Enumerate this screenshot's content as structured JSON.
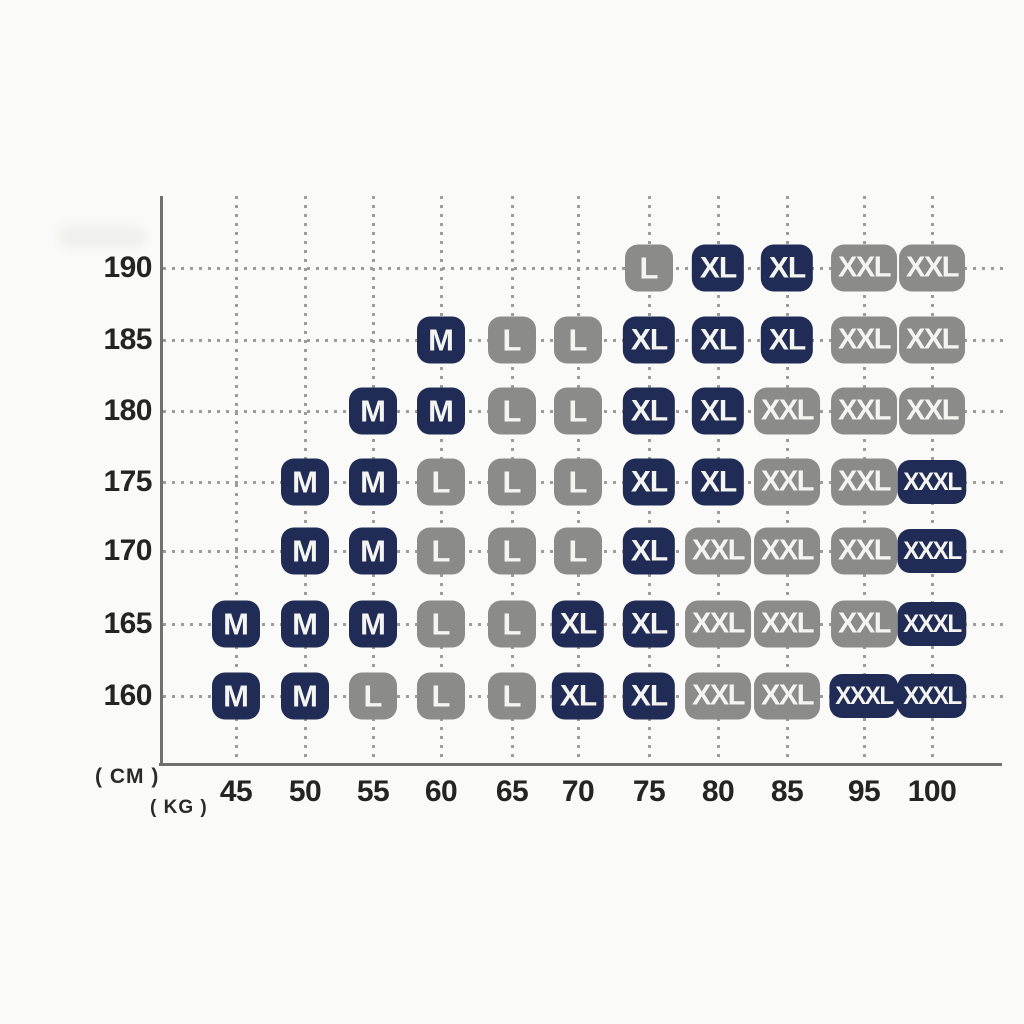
{
  "chart_data": {
    "type": "table",
    "xlabel": "( KG )",
    "ylabel": "( CM )",
    "x_ticks": [
      "45",
      "50",
      "55",
      "60",
      "65",
      "70",
      "75",
      "80",
      "85",
      "95",
      "100"
    ],
    "y_ticks": [
      "190",
      "185",
      "180",
      "175",
      "170",
      "165",
      "160"
    ],
    "sizes": [
      "M",
      "L",
      "XL",
      "XXL",
      "XXXL"
    ],
    "colors": {
      "navy": "#202c55",
      "gray": "#8b8b89",
      "badge_text": "#f4f4f1",
      "tick_text": "#242424",
      "axis": "#707070",
      "dot": "#9d9d9b",
      "background": "#fafaf8"
    },
    "rows": [
      {
        "cm": "190",
        "cells": [
          {
            "kg": "75",
            "size": "L",
            "variant": "gray"
          },
          {
            "kg": "80",
            "size": "XL",
            "variant": "navy"
          },
          {
            "kg": "85",
            "size": "XL",
            "variant": "navy"
          },
          {
            "kg": "95",
            "size": "XXL",
            "variant": "gray"
          },
          {
            "kg": "100",
            "size": "XXL",
            "variant": "gray"
          }
        ]
      },
      {
        "cm": "185",
        "cells": [
          {
            "kg": "60",
            "size": "M",
            "variant": "navy"
          },
          {
            "kg": "65",
            "size": "L",
            "variant": "gray"
          },
          {
            "kg": "70",
            "size": "L",
            "variant": "gray"
          },
          {
            "kg": "75",
            "size": "XL",
            "variant": "navy"
          },
          {
            "kg": "80",
            "size": "XL",
            "variant": "navy"
          },
          {
            "kg": "85",
            "size": "XL",
            "variant": "navy"
          },
          {
            "kg": "95",
            "size": "XXL",
            "variant": "gray"
          },
          {
            "kg": "100",
            "size": "XXL",
            "variant": "gray"
          }
        ]
      },
      {
        "cm": "180",
        "cells": [
          {
            "kg": "55",
            "size": "M",
            "variant": "navy"
          },
          {
            "kg": "60",
            "size": "M",
            "variant": "navy"
          },
          {
            "kg": "65",
            "size": "L",
            "variant": "gray"
          },
          {
            "kg": "70",
            "size": "L",
            "variant": "gray"
          },
          {
            "kg": "75",
            "size": "XL",
            "variant": "navy"
          },
          {
            "kg": "80",
            "size": "XL",
            "variant": "navy"
          },
          {
            "kg": "85",
            "size": "XXL",
            "variant": "gray"
          },
          {
            "kg": "95",
            "size": "XXL",
            "variant": "gray"
          },
          {
            "kg": "100",
            "size": "XXL",
            "variant": "gray"
          }
        ]
      },
      {
        "cm": "175",
        "cells": [
          {
            "kg": "50",
            "size": "M",
            "variant": "navy"
          },
          {
            "kg": "55",
            "size": "M",
            "variant": "navy"
          },
          {
            "kg": "60",
            "size": "L",
            "variant": "gray"
          },
          {
            "kg": "65",
            "size": "L",
            "variant": "gray"
          },
          {
            "kg": "70",
            "size": "L",
            "variant": "gray"
          },
          {
            "kg": "75",
            "size": "XL",
            "variant": "navy"
          },
          {
            "kg": "80",
            "size": "XL",
            "variant": "navy"
          },
          {
            "kg": "85",
            "size": "XXL",
            "variant": "gray"
          },
          {
            "kg": "95",
            "size": "XXL",
            "variant": "gray"
          },
          {
            "kg": "100",
            "size": "XXXL",
            "variant": "navy"
          }
        ]
      },
      {
        "cm": "170",
        "cells": [
          {
            "kg": "50",
            "size": "M",
            "variant": "navy"
          },
          {
            "kg": "55",
            "size": "M",
            "variant": "navy"
          },
          {
            "kg": "60",
            "size": "L",
            "variant": "gray"
          },
          {
            "kg": "65",
            "size": "L",
            "variant": "gray"
          },
          {
            "kg": "70",
            "size": "L",
            "variant": "gray"
          },
          {
            "kg": "75",
            "size": "XL",
            "variant": "navy"
          },
          {
            "kg": "80",
            "size": "XXL",
            "variant": "gray"
          },
          {
            "kg": "85",
            "size": "XXL",
            "variant": "gray"
          },
          {
            "kg": "95",
            "size": "XXL",
            "variant": "gray"
          },
          {
            "kg": "100",
            "size": "XXXL",
            "variant": "navy"
          }
        ]
      },
      {
        "cm": "165",
        "cells": [
          {
            "kg": "45",
            "size": "M",
            "variant": "navy"
          },
          {
            "kg": "50",
            "size": "M",
            "variant": "navy"
          },
          {
            "kg": "55",
            "size": "M",
            "variant": "navy"
          },
          {
            "kg": "60",
            "size": "L",
            "variant": "gray"
          },
          {
            "kg": "65",
            "size": "L",
            "variant": "gray"
          },
          {
            "kg": "70",
            "size": "XL",
            "variant": "navy"
          },
          {
            "kg": "75",
            "size": "XL",
            "variant": "navy"
          },
          {
            "kg": "80",
            "size": "XXL",
            "variant": "gray"
          },
          {
            "kg": "85",
            "size": "XXL",
            "variant": "gray"
          },
          {
            "kg": "95",
            "size": "XXL",
            "variant": "gray"
          },
          {
            "kg": "100",
            "size": "XXXL",
            "variant": "navy"
          }
        ]
      },
      {
        "cm": "160",
        "cells": [
          {
            "kg": "45",
            "size": "M",
            "variant": "navy"
          },
          {
            "kg": "50",
            "size": "M",
            "variant": "navy"
          },
          {
            "kg": "55",
            "size": "L",
            "variant": "gray"
          },
          {
            "kg": "60",
            "size": "L",
            "variant": "gray"
          },
          {
            "kg": "65",
            "size": "L",
            "variant": "gray"
          },
          {
            "kg": "70",
            "size": "XL",
            "variant": "navy"
          },
          {
            "kg": "75",
            "size": "XL",
            "variant": "navy"
          },
          {
            "kg": "80",
            "size": "XXL",
            "variant": "gray"
          },
          {
            "kg": "85",
            "size": "XXL",
            "variant": "gray"
          },
          {
            "kg": "95",
            "size": "XXXL",
            "variant": "navy"
          },
          {
            "kg": "100",
            "size": "XXXL",
            "variant": "navy"
          }
        ]
      }
    ]
  }
}
